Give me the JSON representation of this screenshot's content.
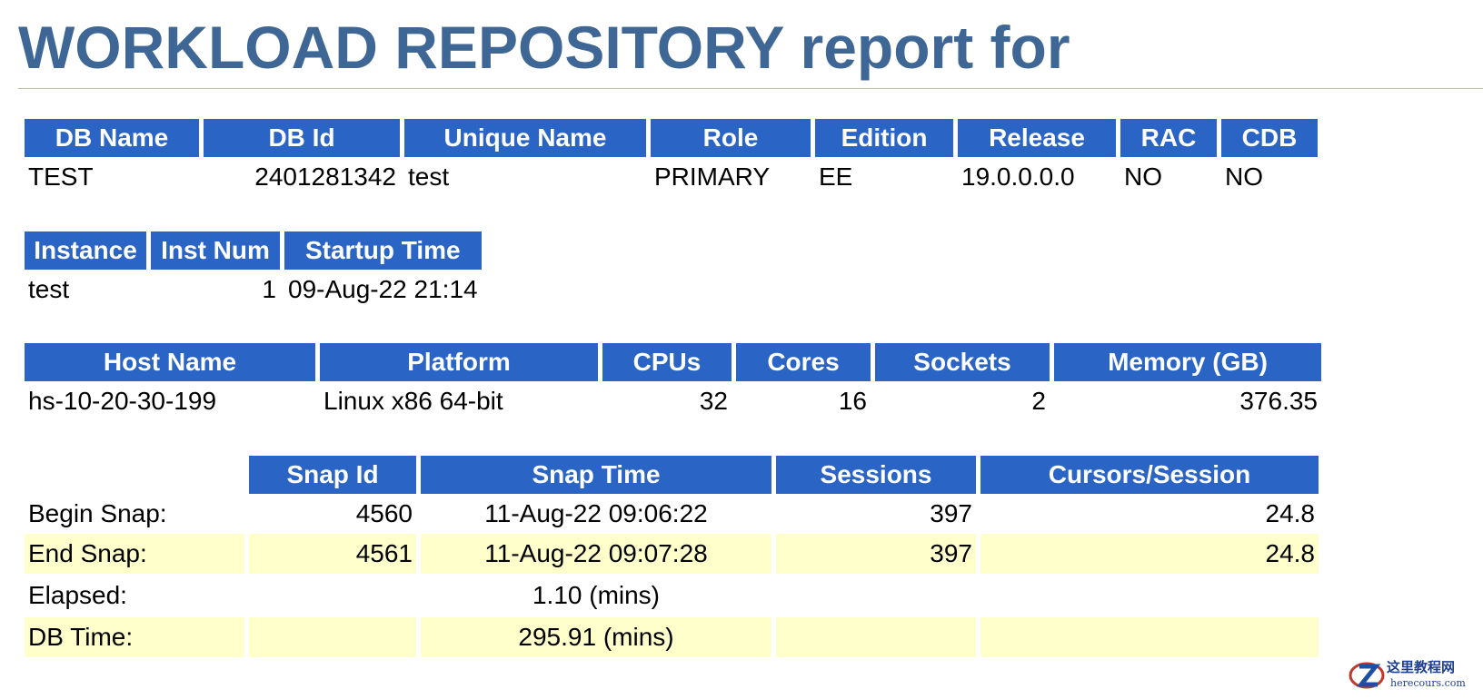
{
  "title": "WORKLOAD REPOSITORY report for",
  "db_table": {
    "headers": [
      "DB Name",
      "DB Id",
      "Unique Name",
      "Role",
      "Edition",
      "Release",
      "RAC",
      "CDB"
    ],
    "row": [
      "TEST",
      "2401281342",
      "test",
      "PRIMARY",
      "EE",
      "19.0.0.0.0",
      "NO",
      "NO"
    ]
  },
  "instance_table": {
    "headers": [
      "Instance",
      "Inst Num",
      "Startup Time"
    ],
    "row": [
      "test",
      "1",
      "09-Aug-22 21:14"
    ]
  },
  "host_table": {
    "headers": [
      "Host Name",
      "Platform",
      "CPUs",
      "Cores",
      "Sockets",
      "Memory (GB)"
    ],
    "row": [
      "hs-10-20-30-199",
      "Linux x86 64-bit",
      "32",
      "16",
      "2",
      "376.35"
    ]
  },
  "snap_table": {
    "headers": [
      "",
      "Snap Id",
      "Snap Time",
      "Sessions",
      "Cursors/Session"
    ],
    "rows": [
      [
        "Begin Snap:",
        "4560",
        "11-Aug-22 09:06:22",
        "397",
        "24.8"
      ],
      [
        "End Snap:",
        "4561",
        "11-Aug-22 09:07:28",
        "397",
        "24.8"
      ],
      [
        "Elapsed:",
        "",
        "1.10 (mins)",
        "",
        ""
      ],
      [
        "DB Time:",
        "",
        "295.91 (mins)",
        "",
        ""
      ]
    ]
  },
  "watermark": {
    "text": "这里教程网",
    "subtext": "herecours.com",
    "icon": "z-logo-icon"
  }
}
